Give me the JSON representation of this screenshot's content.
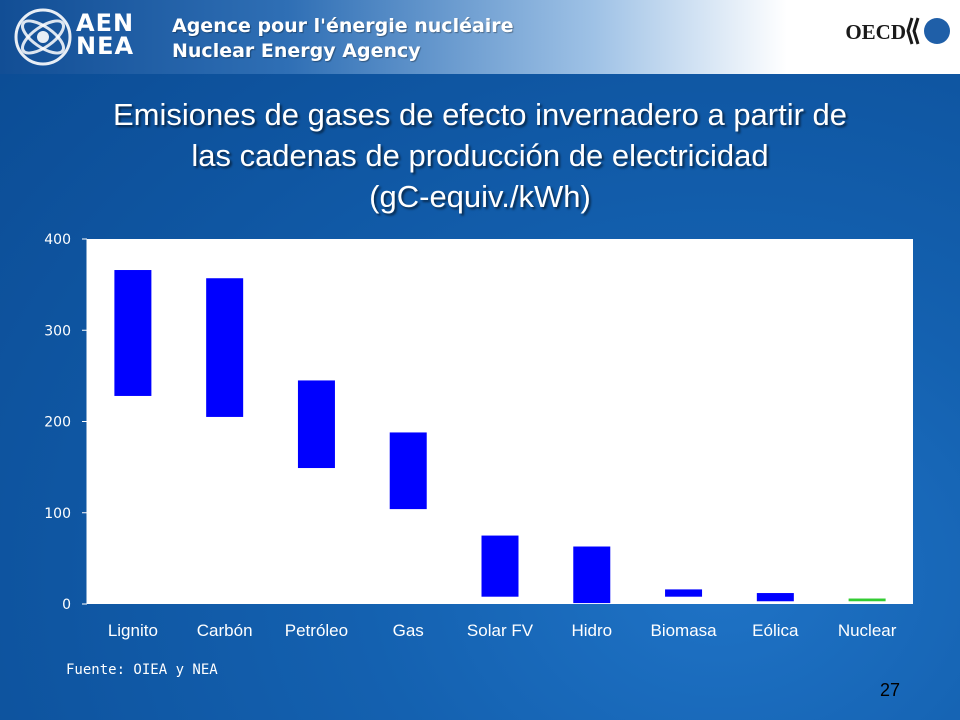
{
  "header": {
    "logo_text_line1": "AEN",
    "logo_text_line2": "NEA",
    "org_name_fr": "Agence pour l'énergie nucléaire",
    "org_name_en": "Nuclear Energy Agency",
    "partner_logo_text": "OECD"
  },
  "slide": {
    "title_line1": "Emisiones de gases de efecto invernadero a partir de",
    "title_line2": "las cadenas de producción de electricidad",
    "title_line3": "(gC-equiv./kWh)",
    "source_note": "Fuente: OIEA y NEA",
    "page_number": "27"
  },
  "chart_data": {
    "type": "bar",
    "subtype": "floating range",
    "title": "",
    "xlabel": "",
    "ylabel": "",
    "ylim": [
      0,
      400
    ],
    "yticks": [
      0,
      100,
      200,
      300,
      400
    ],
    "grid": false,
    "legend": "none",
    "categories": [
      "Lignito",
      "Carbón",
      "Petróleo",
      "Gas",
      "Solar FV",
      "Hidro",
      "Biomasa",
      "Eólica",
      "Nuclear"
    ],
    "series": [
      {
        "low": [
          228,
          205,
          149,
          104,
          8,
          1,
          8,
          3,
          3
        ],
        "high": [
          366,
          357,
          245,
          188,
          75,
          63,
          16,
          12,
          6
        ],
        "colors": [
          "#0000ff",
          "#0000ff",
          "#0000ff",
          "#0000ff",
          "#0000ff",
          "#0000ff",
          "#0000ff",
          "#0000ff",
          "#33cc33"
        ]
      }
    ]
  }
}
